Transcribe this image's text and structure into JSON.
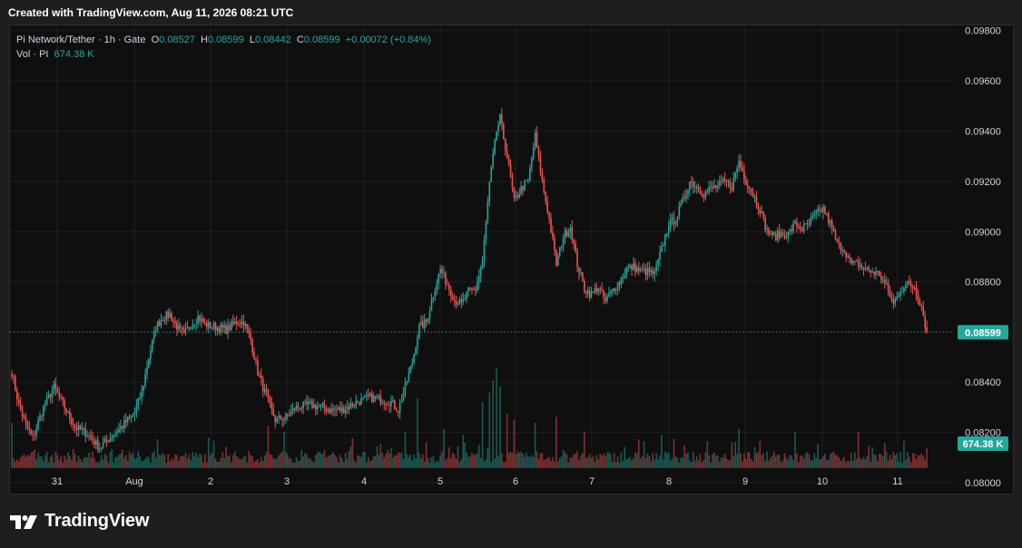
{
  "header": {
    "created_text": "Created with TradingView.com, Aug 11, 2026 08:21 UTC"
  },
  "legend": {
    "symbol": "Pi Network/Tether · 1h · Gate",
    "o_label": "O",
    "open": "0.08527",
    "h_label": "H",
    "high": "0.08599",
    "l_label": "L",
    "low": "0.08442",
    "c_label": "C",
    "close": "0.08599",
    "change": "+0.00072 (+0.84%)",
    "vol_label": "Vol · PI",
    "vol_value": "674.38 K"
  },
  "logo": {
    "text": "TradingView"
  },
  "colors": {
    "up": "#26a69a",
    "down": "#ef5350",
    "grid": "#1c1f26",
    "text": "#d1d4dc"
  },
  "chart_data": {
    "type": "candlestick",
    "interval": "1h",
    "price_axis": {
      "ticks": [
        "0.09800",
        "0.09600",
        "0.09400",
        "0.09200",
        "0.09000",
        "0.08800",
        "0.08600",
        "0.08400",
        "0.08200",
        "0.08000"
      ],
      "range": [
        0.0795,
        0.0982
      ]
    },
    "time_axis": {
      "ticks": [
        "31",
        "Aug",
        "2",
        "3",
        "4",
        "5",
        "6",
        "7",
        "8",
        "9",
        "10",
        "11"
      ]
    },
    "last_price_label": "0.08599",
    "last_volume_label": "674.38 K",
    "volume_max": 3600000,
    "anchors": [
      [
        0,
        0.0844
      ],
      [
        4,
        0.0831
      ],
      [
        8,
        0.0823
      ],
      [
        12,
        0.0818
      ],
      [
        18,
        0.083
      ],
      [
        24,
        0.0838
      ],
      [
        30,
        0.083
      ],
      [
        36,
        0.0822
      ],
      [
        42,
        0.082
      ],
      [
        50,
        0.0814
      ],
      [
        56,
        0.0818
      ],
      [
        62,
        0.0822
      ],
      [
        70,
        0.0828
      ],
      [
        74,
        0.0836
      ],
      [
        78,
        0.085
      ],
      [
        82,
        0.0862
      ],
      [
        86,
        0.0866
      ],
      [
        90,
        0.0867
      ],
      [
        94,
        0.0862
      ],
      [
        98,
        0.0859
      ],
      [
        102,
        0.0863
      ],
      [
        106,
        0.0866
      ],
      [
        110,
        0.0863
      ],
      [
        116,
        0.0862
      ],
      [
        122,
        0.0861
      ],
      [
        128,
        0.0864
      ],
      [
        132,
        0.0864
      ],
      [
        136,
        0.0857
      ],
      [
        140,
        0.0844
      ],
      [
        144,
        0.0836
      ],
      [
        150,
        0.0825
      ],
      [
        156,
        0.0826
      ],
      [
        162,
        0.083
      ],
      [
        170,
        0.0831
      ],
      [
        176,
        0.083
      ],
      [
        182,
        0.0829
      ],
      [
        188,
        0.0829
      ],
      [
        196,
        0.0832
      ],
      [
        204,
        0.0834
      ],
      [
        210,
        0.0833
      ],
      [
        216,
        0.0832
      ],
      [
        220,
        0.0829
      ],
      [
        224,
        0.0838
      ],
      [
        228,
        0.0848
      ],
      [
        232,
        0.0862
      ],
      [
        236,
        0.0864
      ],
      [
        240,
        0.0875
      ],
      [
        244,
        0.0885
      ],
      [
        248,
        0.0879
      ],
      [
        252,
        0.0873
      ],
      [
        256,
        0.0871
      ],
      [
        260,
        0.0876
      ],
      [
        264,
        0.0877
      ],
      [
        268,
        0.0888
      ],
      [
        272,
        0.0919
      ],
      [
        276,
        0.094
      ],
      [
        278,
        0.0945
      ],
      [
        282,
        0.093
      ],
      [
        286,
        0.0912
      ],
      [
        290,
        0.0917
      ],
      [
        294,
        0.092
      ],
      [
        298,
        0.0938
      ],
      [
        302,
        0.092
      ],
      [
        306,
        0.0905
      ],
      [
        310,
        0.0887
      ],
      [
        314,
        0.0898
      ],
      [
        318,
        0.0902
      ],
      [
        322,
        0.0887
      ],
      [
        326,
        0.0877
      ],
      [
        330,
        0.0875
      ],
      [
        334,
        0.0878
      ],
      [
        338,
        0.0872
      ],
      [
        342,
        0.0877
      ],
      [
        346,
        0.088
      ],
      [
        350,
        0.0885
      ],
      [
        354,
        0.0886
      ],
      [
        358,
        0.0884
      ],
      [
        362,
        0.0884
      ],
      [
        366,
        0.0883
      ],
      [
        370,
        0.0893
      ],
      [
        374,
        0.0903
      ],
      [
        378,
        0.0905
      ],
      [
        382,
        0.0912
      ],
      [
        386,
        0.092
      ],
      [
        390,
        0.0918
      ],
      [
        394,
        0.0915
      ],
      [
        398,
        0.0917
      ],
      [
        402,
        0.0918
      ],
      [
        406,
        0.092
      ],
      [
        410,
        0.0918
      ],
      [
        414,
        0.0928
      ],
      [
        418,
        0.092
      ],
      [
        422,
        0.0915
      ],
      [
        426,
        0.0909
      ],
      [
        430,
        0.09
      ],
      [
        434,
        0.0898
      ],
      [
        438,
        0.0899
      ],
      [
        442,
        0.0899
      ],
      [
        446,
        0.0903
      ],
      [
        450,
        0.0901
      ],
      [
        454,
        0.0903
      ],
      [
        458,
        0.0907
      ],
      [
        462,
        0.0909
      ],
      [
        466,
        0.0903
      ],
      [
        470,
        0.0895
      ],
      [
        474,
        0.0893
      ],
      [
        478,
        0.0887
      ],
      [
        482,
        0.0887
      ],
      [
        486,
        0.0885
      ],
      [
        490,
        0.0884
      ],
      [
        494,
        0.0883
      ],
      [
        498,
        0.0878
      ],
      [
        502,
        0.0871
      ],
      [
        506,
        0.0877
      ],
      [
        510,
        0.0879
      ],
      [
        514,
        0.0878
      ],
      [
        518,
        0.087
      ],
      [
        521,
        0.086
      ]
    ],
    "volume_spikes": [
      [
        0,
        1500000
      ],
      [
        146,
        1400000
      ],
      [
        155,
        1200000
      ],
      [
        224,
        1200000
      ],
      [
        231,
        2300000
      ],
      [
        246,
        1300000
      ],
      [
        257,
        1100000
      ],
      [
        268,
        2200000
      ],
      [
        272,
        2500000
      ],
      [
        274,
        2900000
      ],
      [
        276,
        3300000
      ],
      [
        278,
        2700000
      ],
      [
        282,
        1800000
      ],
      [
        286,
        1600000
      ],
      [
        298,
        1500000
      ],
      [
        310,
        1700000
      ],
      [
        326,
        1200000
      ],
      [
        370,
        1100000
      ],
      [
        414,
        1300000
      ],
      [
        426,
        900000
      ],
      [
        446,
        1200000
      ],
      [
        482,
        1200000
      ],
      [
        508,
        900000
      ],
      [
        521,
        675000
      ]
    ]
  }
}
